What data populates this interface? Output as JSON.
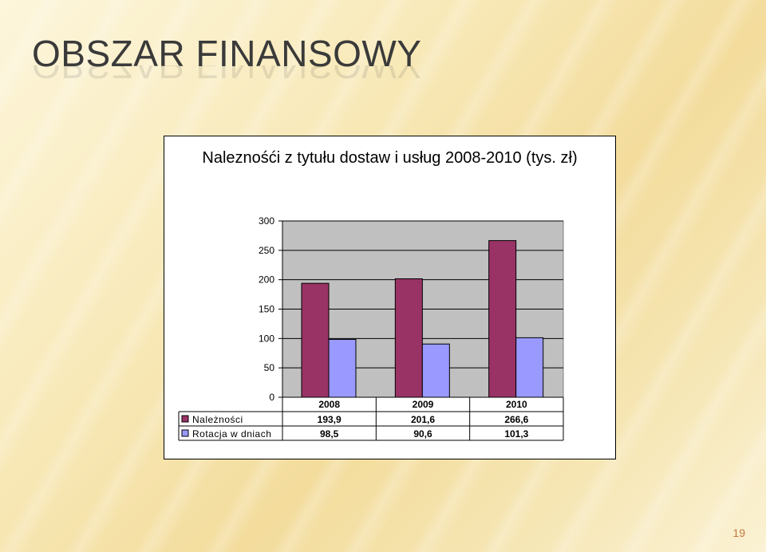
{
  "slide": {
    "title": "OBSZAR FINANSOWY",
    "page_number": "19"
  },
  "chart_data": {
    "type": "bar",
    "title": "Naleznośći z tytułu dostaw i usług 2008-2010 (tys. zł)",
    "categories": [
      "2008",
      "2009",
      "2010"
    ],
    "ylim": [
      0,
      300
    ],
    "yticks": [
      0,
      50,
      100,
      150,
      200,
      250,
      300
    ],
    "grid": true,
    "legend_placement": "data table below chart",
    "series": [
      {
        "name": "Należności",
        "values": [
          193.9,
          201.6,
          266.6
        ],
        "labels": [
          "193,9",
          "201,6",
          "266,6"
        ],
        "color": "#993366"
      },
      {
        "name": "Rotacja w dniach",
        "values": [
          98.5,
          90.6,
          101.3
        ],
        "labels": [
          "98,5",
          "90,6",
          "101,3"
        ],
        "color": "#9999FF"
      }
    ],
    "plot_background": "#C0C0C0"
  }
}
